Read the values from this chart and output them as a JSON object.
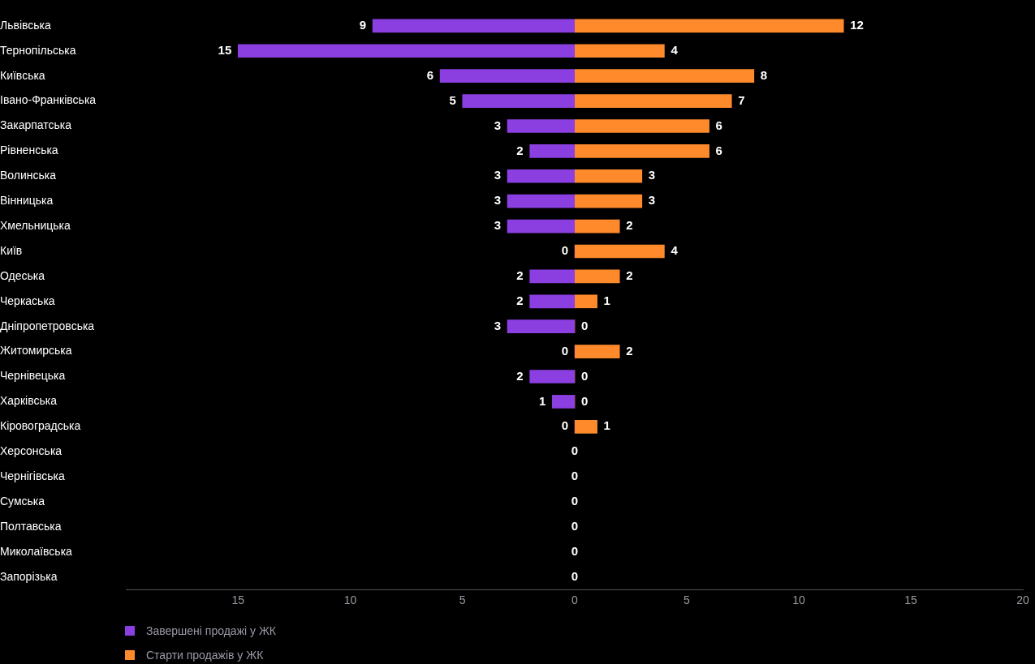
{
  "chart_data": [
    {
      "type": "bar",
      "orientation": "horizontal",
      "categories": [
        "Львівська",
        "Тернопільська",
        "Київська",
        "Івано-Франківська",
        "Закарпатська",
        "Рівненська",
        "Волинська",
        "Вінницька",
        "Хмельницька",
        "Київ",
        "Одеська",
        "Черкаська",
        "Дніпропетровська",
        "Житомирська",
        "Чернівецька",
        "Харківська",
        "Кіровоградська",
        "Херсонська",
        "Чернігівська",
        "Сумська",
        "Полтавська",
        "Миколаївська",
        "Запорізька"
      ],
      "series": [
        {
          "name": "Завершені продажі у ЖК",
          "color": "#8b3fe0",
          "values": [
            9,
            15,
            6,
            5,
            3,
            2,
            3,
            3,
            3,
            0,
            2,
            2,
            3,
            0,
            2,
            1,
            0,
            0,
            0,
            0,
            0,
            0,
            0
          ],
          "value_labels": [
            "9",
            "15",
            "6",
            "5",
            "3",
            "2",
            "3",
            "3",
            "3",
            "0",
            "2",
            "2",
            "3",
            "0",
            "2",
            "1",
            "0",
            null,
            null,
            null,
            null,
            null,
            null
          ]
        }
      ],
      "xlim": [
        20,
        0
      ],
      "xticks": [
        15,
        10,
        5
      ],
      "grid": false,
      "legend": "bottom left"
    },
    {
      "type": "bar",
      "orientation": "horizontal",
      "categories": [
        null,
        null,
        null,
        null,
        null,
        null,
        null,
        null,
        null,
        null,
        null,
        null,
        null,
        null,
        null,
        null,
        null,
        null,
        null,
        null,
        null,
        null,
        null
      ],
      "series": [
        {
          "name": "Старти продажів у ЖК",
          "color": "#ff8a2c",
          "values": [
            12,
            4,
            8,
            7,
            6,
            6,
            3,
            3,
            2,
            4,
            2,
            1,
            0,
            2,
            0,
            0,
            1,
            0,
            0,
            0,
            0,
            0,
            0
          ],
          "value_labels": [
            "12",
            "4",
            "8",
            "7",
            "6",
            "6",
            "3",
            "3",
            "2",
            "4",
            "2",
            "1",
            "0",
            "2",
            "0",
            "0",
            "1",
            "0",
            "0",
            "0",
            "0",
            "0",
            "0"
          ]
        }
      ],
      "xlim": [
        0,
        20
      ],
      "xticks": [
        0,
        5,
        10,
        15,
        20
      ],
      "tick_labels": "x",
      "grid": false,
      "legend": "bottom left"
    }
  ]
}
